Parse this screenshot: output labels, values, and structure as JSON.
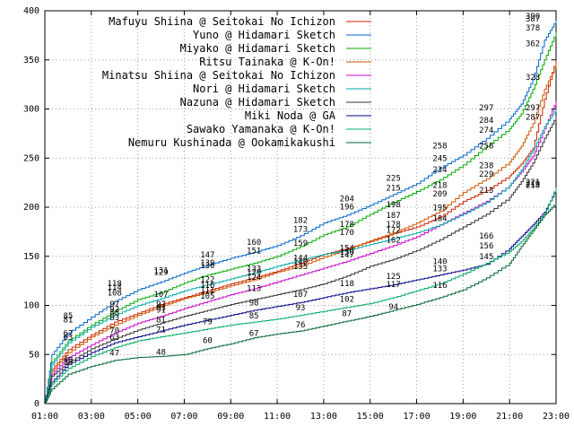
{
  "chart_data": {
    "type": "line",
    "title": "",
    "xlabel": "",
    "ylabel": "",
    "xlim": [
      "01:00",
      "23:00"
    ],
    "ylim": [
      0,
      400
    ],
    "x_ticks": [
      "01:00",
      "03:00",
      "05:00",
      "07:00",
      "09:00",
      "11:00",
      "13:00",
      "15:00",
      "17:00",
      "19:00",
      "21:00",
      "23:00"
    ],
    "y_ticks": [
      0,
      50,
      100,
      150,
      200,
      250,
      300,
      350,
      400
    ],
    "grid": true,
    "legend_position": "top-left",
    "series": [
      {
        "name": "Mafuyu Shiina @ Seitokai No Ichizon",
        "color": "#cc2200",
        "x": [
          1,
          1.3,
          2,
          3,
          4,
          5,
          6,
          7,
          8,
          9,
          10,
          11,
          12,
          13,
          14,
          15,
          16,
          17,
          18,
          19,
          20,
          21,
          21.5,
          22,
          22.5,
          23
        ],
        "values": [
          0,
          35,
          55,
          70,
          83,
          92,
          101,
          108,
          115,
          122,
          128,
          135,
          143,
          152,
          158,
          165,
          173,
          180,
          190,
          206,
          217,
          232,
          244,
          260,
          310,
          350
        ]
      },
      {
        "name": "Yuno @ Hidamari Sketch",
        "color": "#0066cc",
        "x": [
          1,
          1.3,
          2,
          3,
          4,
          5,
          6,
          7,
          8,
          9,
          10,
          11,
          12,
          13,
          14,
          15,
          16,
          17,
          18,
          19,
          20,
          21,
          21.5,
          22,
          22.5,
          23
        ],
        "values": [
          0,
          50,
          72,
          88,
          104,
          116,
          124,
          133,
          141,
          148,
          154,
          161,
          171,
          184,
          192,
          202,
          213,
          224,
          240,
          253,
          270,
          290,
          305,
          330,
          370,
          390
        ]
      },
      {
        "name": "Miyako @ Hidamari Sketch",
        "color": "#00aa00",
        "x": [
          1,
          1.3,
          2,
          3,
          4,
          5,
          6,
          7,
          8,
          9,
          10,
          11,
          12,
          13,
          14,
          15,
          16,
          17,
          18,
          19,
          20,
          21,
          21.5,
          22,
          22.5,
          23
        ],
        "values": [
          0,
          42,
          64,
          80,
          94,
          106,
          113,
          123,
          131,
          137,
          143,
          150,
          160,
          172,
          180,
          193,
          205,
          216,
          228,
          243,
          262,
          280,
          295,
          320,
          350,
          378
        ]
      },
      {
        "name": "Ritsu Tainaka @ K-On!",
        "color": "#cc5500",
        "x": [
          1,
          1.3,
          2,
          3,
          4,
          5,
          6,
          7,
          8,
          9,
          10,
          11,
          12,
          13,
          14,
          15,
          16,
          17,
          18,
          19,
          20,
          21,
          21.5,
          22,
          22.5,
          23
        ],
        "values": [
          0,
          33,
          52,
          68,
          80,
          90,
          99,
          107,
          113,
          120,
          126,
          134,
          140,
          149,
          157,
          166,
          174,
          184,
          196,
          215,
          229,
          246,
          262,
          285,
          320,
          346
        ]
      },
      {
        "name": "Minatsu Shiina @ Seitokai No Ichizon",
        "color": "#cc00cc",
        "x": [
          1,
          1.3,
          2,
          3,
          4,
          5,
          6,
          7,
          8,
          9,
          10,
          11,
          12,
          13,
          14,
          15,
          16,
          17,
          18,
          19,
          20,
          21,
          21.5,
          22,
          22.5,
          23
        ],
        "values": [
          0,
          30,
          47,
          60,
          72,
          82,
          89,
          97,
          104,
          111,
          117,
          124,
          131,
          138,
          145,
          153,
          161,
          170,
          182,
          194,
          206,
          222,
          236,
          252,
          280,
          308
        ]
      },
      {
        "name": "Nori @ Hidamari Sketch",
        "color": "#00aaaa",
        "x": [
          1,
          1.3,
          2,
          3,
          4,
          5,
          6,
          7,
          8,
          9,
          10,
          11,
          12,
          13,
          14,
          15,
          16,
          17,
          18,
          19,
          20,
          21,
          21.5,
          22,
          22.5,
          23
        ],
        "values": [
          0,
          40,
          62,
          78,
          90,
          100,
          107,
          115,
          121,
          127,
          133,
          140,
          146,
          152,
          156,
          162,
          168,
          174,
          182,
          193,
          205,
          222,
          238,
          258,
          282,
          300
        ]
      },
      {
        "name": "Nazuna @ Hidamari Sketch",
        "color": "#333333",
        "x": [
          1,
          1.3,
          2,
          3,
          4,
          5,
          6,
          7,
          8,
          9,
          10,
          11,
          12,
          13,
          14,
          15,
          16,
          17,
          18,
          19,
          20,
          21,
          21.5,
          22,
          22.5,
          23
        ],
        "values": [
          0,
          28,
          42,
          56,
          66,
          75,
          82,
          89,
          95,
          101,
          106,
          111,
          116,
          122,
          130,
          140,
          147,
          156,
          167,
          180,
          193,
          210,
          226,
          245,
          270,
          292
        ]
      },
      {
        "name": "Miki Noda @ GA",
        "color": "#000088",
        "x": [
          1,
          1.3,
          2,
          3,
          4,
          5,
          6,
          7,
          8,
          9,
          10,
          11,
          12,
          13,
          14,
          15,
          16,
          17,
          18,
          19,
          20,
          21,
          21.5,
          22,
          22.5,
          23
        ],
        "values": [
          0,
          22,
          40,
          52,
          62,
          68,
          74,
          80,
          85,
          90,
          95,
          99,
          103,
          108,
          113,
          117,
          121,
          126,
          131,
          136,
          142,
          158,
          170,
          182,
          195,
          218
        ]
      },
      {
        "name": "Sawako Yamanaka @ K-On!",
        "color": "#00aa66",
        "x": [
          1,
          1.3,
          2,
          3,
          4,
          5,
          6,
          7,
          8,
          9,
          10,
          11,
          12,
          13,
          14,
          15,
          16,
          17,
          18,
          19,
          20,
          21,
          21.5,
          22,
          22.5,
          23
        ],
        "values": [
          0,
          20,
          36,
          48,
          57,
          64,
          68,
          72,
          76,
          80,
          83,
          86,
          90,
          94,
          98,
          102,
          108,
          115,
          122,
          132,
          143,
          155,
          165,
          178,
          193,
          220
        ]
      },
      {
        "name": "Nemuru Kushinada @ Ookamikakushi",
        "color": "#006633",
        "x": [
          1,
          1.3,
          2,
          3,
          4,
          5,
          6,
          7,
          8,
          9,
          10,
          11,
          12,
          13,
          14,
          15,
          16,
          17,
          18,
          19,
          20,
          21,
          21.5,
          22,
          22.5,
          23
        ],
        "values": [
          0,
          15,
          30,
          38,
          44,
          47,
          48,
          50,
          56,
          61,
          67,
          71,
          74,
          79,
          84,
          89,
          95,
          101,
          108,
          116,
          128,
          143,
          160,
          176,
          192,
          204
        ]
      }
    ],
    "annotations": [
      {
        "x": 2,
        "y": 85,
        "text": "85"
      },
      {
        "x": 2,
        "y": 81,
        "text": "81"
      },
      {
        "x": 2,
        "y": 67,
        "text": "67"
      },
      {
        "x": 2,
        "y": 63,
        "text": "63"
      },
      {
        "x": 2,
        "y": 40,
        "text": "40"
      },
      {
        "x": 2,
        "y": 38,
        "text": "38"
      },
      {
        "x": 4,
        "y": 118,
        "text": "118"
      },
      {
        "x": 4,
        "y": 114,
        "text": "114"
      },
      {
        "x": 4,
        "y": 108,
        "text": "108"
      },
      {
        "x": 4,
        "y": 97,
        "text": "97"
      },
      {
        "x": 4,
        "y": 92,
        "text": "92"
      },
      {
        "x": 4,
        "y": 88,
        "text": "88"
      },
      {
        "x": 4,
        "y": 83,
        "text": "83"
      },
      {
        "x": 4,
        "y": 70,
        "text": "70"
      },
      {
        "x": 4,
        "y": 63,
        "text": "63"
      },
      {
        "x": 4,
        "y": 47,
        "text": "47"
      },
      {
        "x": 6,
        "y": 131,
        "text": "131"
      },
      {
        "x": 6,
        "y": 129,
        "text": "129"
      },
      {
        "x": 6,
        "y": 107,
        "text": "107"
      },
      {
        "x": 6,
        "y": 97,
        "text": "97"
      },
      {
        "x": 6,
        "y": 93,
        "text": "93"
      },
      {
        "x": 6,
        "y": 91,
        "text": "91"
      },
      {
        "x": 6,
        "y": 81,
        "text": "81"
      },
      {
        "x": 6,
        "y": 71,
        "text": "71"
      },
      {
        "x": 6,
        "y": 48,
        "text": "48"
      },
      {
        "x": 8,
        "y": 147,
        "text": "147"
      },
      {
        "x": 8,
        "y": 139,
        "text": "139"
      },
      {
        "x": 8,
        "y": 136,
        "text": "136"
      },
      {
        "x": 8,
        "y": 122,
        "text": "122"
      },
      {
        "x": 8,
        "y": 116,
        "text": "116"
      },
      {
        "x": 8,
        "y": 111,
        "text": "111"
      },
      {
        "x": 8,
        "y": 105,
        "text": "105"
      },
      {
        "x": 8,
        "y": 79,
        "text": "79"
      },
      {
        "x": 8,
        "y": 60,
        "text": "60"
      },
      {
        "x": 10,
        "y": 160,
        "text": "160"
      },
      {
        "x": 10,
        "y": 151,
        "text": "151"
      },
      {
        "x": 10,
        "y": 133,
        "text": "133"
      },
      {
        "x": 10,
        "y": 129,
        "text": "129"
      },
      {
        "x": 10,
        "y": 124,
        "text": "124"
      },
      {
        "x": 10,
        "y": 113,
        "text": "113"
      },
      {
        "x": 10,
        "y": 98,
        "text": "98"
      },
      {
        "x": 10,
        "y": 85,
        "text": "85"
      },
      {
        "x": 10,
        "y": 67,
        "text": "67"
      },
      {
        "x": 12,
        "y": 182,
        "text": "182"
      },
      {
        "x": 12,
        "y": 173,
        "text": "173"
      },
      {
        "x": 12,
        "y": 159,
        "text": "159"
      },
      {
        "x": 12,
        "y": 144,
        "text": "144"
      },
      {
        "x": 12,
        "y": 140,
        "text": "140"
      },
      {
        "x": 12,
        "y": 135,
        "text": "135"
      },
      {
        "x": 12,
        "y": 107,
        "text": "107"
      },
      {
        "x": 12,
        "y": 93,
        "text": "93"
      },
      {
        "x": 12,
        "y": 76,
        "text": "76"
      },
      {
        "x": 14,
        "y": 204,
        "text": "204"
      },
      {
        "x": 14,
        "y": 196,
        "text": "196"
      },
      {
        "x": 14,
        "y": 178,
        "text": "178"
      },
      {
        "x": 14,
        "y": 170,
        "text": "170"
      },
      {
        "x": 14,
        "y": 154,
        "text": "154"
      },
      {
        "x": 14,
        "y": 150,
        "text": "150"
      },
      {
        "x": 14,
        "y": 147,
        "text": "147"
      },
      {
        "x": 14,
        "y": 118,
        "text": "118"
      },
      {
        "x": 14,
        "y": 102,
        "text": "102"
      },
      {
        "x": 14,
        "y": 87,
        "text": "87"
      },
      {
        "x": 16,
        "y": 225,
        "text": "225"
      },
      {
        "x": 16,
        "y": 215,
        "text": "215"
      },
      {
        "x": 16,
        "y": 198,
        "text": "198"
      },
      {
        "x": 16,
        "y": 187,
        "text": "187"
      },
      {
        "x": 16,
        "y": 178,
        "text": "178"
      },
      {
        "x": 16,
        "y": 172,
        "text": "172"
      },
      {
        "x": 16,
        "y": 162,
        "text": "162"
      },
      {
        "x": 16,
        "y": 125,
        "text": "125"
      },
      {
        "x": 16,
        "y": 117,
        "text": "117"
      },
      {
        "x": 16,
        "y": 94,
        "text": "94"
      },
      {
        "x": 18,
        "y": 258,
        "text": "258"
      },
      {
        "x": 18,
        "y": 245,
        "text": "245"
      },
      {
        "x": 18,
        "y": 234,
        "text": "234"
      },
      {
        "x": 18,
        "y": 218,
        "text": "218"
      },
      {
        "x": 18,
        "y": 209,
        "text": "209"
      },
      {
        "x": 18,
        "y": 195,
        "text": "195"
      },
      {
        "x": 18,
        "y": 184,
        "text": "184"
      },
      {
        "x": 18,
        "y": 140,
        "text": "140"
      },
      {
        "x": 18,
        "y": 133,
        "text": "133"
      },
      {
        "x": 18,
        "y": 116,
        "text": "116"
      },
      {
        "x": 20,
        "y": 297,
        "text": "297"
      },
      {
        "x": 20,
        "y": 284,
        "text": "284"
      },
      {
        "x": 20,
        "y": 274,
        "text": "274"
      },
      {
        "x": 20,
        "y": 258,
        "text": "258"
      },
      {
        "x": 20,
        "y": 238,
        "text": "238"
      },
      {
        "x": 20,
        "y": 229,
        "text": "229"
      },
      {
        "x": 20,
        "y": 213,
        "text": "213"
      },
      {
        "x": 20,
        "y": 166,
        "text": "166"
      },
      {
        "x": 20,
        "y": 156,
        "text": "156"
      },
      {
        "x": 20,
        "y": 145,
        "text": "145"
      },
      {
        "x": 22,
        "y": 390,
        "text": "390"
      },
      {
        "x": 22,
        "y": 387,
        "text": "387"
      },
      {
        "x": 22,
        "y": 378,
        "text": "378"
      },
      {
        "x": 22,
        "y": 362,
        "text": "362"
      },
      {
        "x": 22,
        "y": 328,
        "text": "328"
      },
      {
        "x": 22,
        "y": 297,
        "text": "297"
      },
      {
        "x": 22,
        "y": 287,
        "text": "287"
      },
      {
        "x": 22,
        "y": 221,
        "text": "221"
      },
      {
        "x": 22,
        "y": 219,
        "text": "219"
      },
      {
        "x": 22,
        "y": 218,
        "text": "218"
      }
    ]
  }
}
